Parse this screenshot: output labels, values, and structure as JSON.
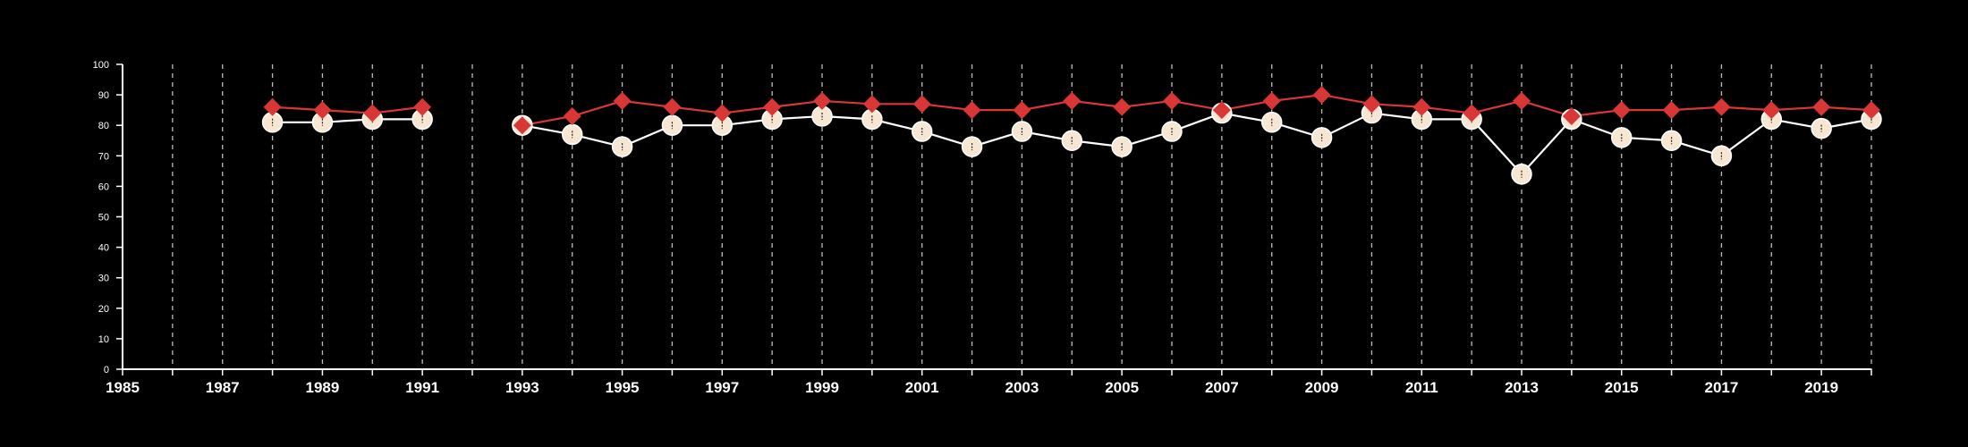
{
  "chart_data": {
    "type": "line",
    "title": "",
    "xlabel": "",
    "ylabel": "",
    "xlim": [
      1985,
      2020
    ],
    "ylim": [
      0,
      100
    ],
    "x_ticks": [
      1985,
      1987,
      1989,
      1991,
      1993,
      1995,
      1997,
      1999,
      2001,
      2003,
      2005,
      2007,
      2009,
      2011,
      2013,
      2015,
      2017,
      2019
    ],
    "x_tick_labels": [
      "1985",
      "1987",
      "1989",
      "1991",
      "1993",
      "1995",
      "1997",
      "1999",
      "2001",
      "2003",
      "2005",
      "2007",
      "2009",
      "2011",
      "2013",
      "2015",
      "2017",
      "2019"
    ],
    "y_ticks": [
      0,
      10,
      20,
      30,
      40,
      50,
      60,
      70,
      80,
      90,
      100
    ],
    "y_tick_labels": [
      "0",
      "10",
      "20",
      "30",
      "40",
      "50",
      "60",
      "70",
      "80",
      "90",
      "100"
    ],
    "grid": "vertical dashed lines at every year",
    "legend": "none",
    "background": "#000000",
    "series": [
      {
        "color": "#d93636",
        "marker": "diamond",
        "points": [
          {
            "x": 1988,
            "y": 86
          },
          {
            "x": 1989,
            "y": 85
          },
          {
            "x": 1990,
            "y": 84
          },
          {
            "x": 1991,
            "y": 86
          },
          {
            "x": 1993,
            "y": 80
          },
          {
            "x": 1994,
            "y": 83
          },
          {
            "x": 1995,
            "y": 88
          },
          {
            "x": 1996,
            "y": 86
          },
          {
            "x": 1997,
            "y": 84
          },
          {
            "x": 1998,
            "y": 86
          },
          {
            "x": 1999,
            "y": 88
          },
          {
            "x": 2000,
            "y": 87
          },
          {
            "x": 2001,
            "y": 87
          },
          {
            "x": 2002,
            "y": 85
          },
          {
            "x": 2003,
            "y": 85
          },
          {
            "x": 2004,
            "y": 88
          },
          {
            "x": 2005,
            "y": 86
          },
          {
            "x": 2006,
            "y": 88
          },
          {
            "x": 2007,
            "y": 85
          },
          {
            "x": 2008,
            "y": 88
          },
          {
            "x": 2009,
            "y": 90
          },
          {
            "x": 2010,
            "y": 87
          },
          {
            "x": 2011,
            "y": 86
          },
          {
            "x": 2012,
            "y": 84
          },
          {
            "x": 2013,
            "y": 88
          },
          {
            "x": 2014,
            "y": 83
          },
          {
            "x": 2015,
            "y": 85
          },
          {
            "x": 2016,
            "y": 85
          },
          {
            "x": 2017,
            "y": 86
          },
          {
            "x": 2018,
            "y": 85
          },
          {
            "x": 2019,
            "y": 86
          },
          {
            "x": 2020,
            "y": 85
          }
        ]
      },
      {
        "color": "#ffffff",
        "marker": "circle",
        "marker_fill": "#f7e6d2",
        "points": [
          {
            "x": 1988,
            "y": 81
          },
          {
            "x": 1989,
            "y": 81
          },
          {
            "x": 1990,
            "y": 82
          },
          {
            "x": 1991,
            "y": 82
          },
          {
            "x": 1993,
            "y": 80
          },
          {
            "x": 1994,
            "y": 77
          },
          {
            "x": 1995,
            "y": 73
          },
          {
            "x": 1996,
            "y": 80
          },
          {
            "x": 1997,
            "y": 80
          },
          {
            "x": 1998,
            "y": 82
          },
          {
            "x": 1999,
            "y": 83
          },
          {
            "x": 2000,
            "y": 82
          },
          {
            "x": 2001,
            "y": 78
          },
          {
            "x": 2002,
            "y": 73
          },
          {
            "x": 2003,
            "y": 78
          },
          {
            "x": 2004,
            "y": 75
          },
          {
            "x": 2005,
            "y": 73
          },
          {
            "x": 2006,
            "y": 78
          },
          {
            "x": 2007,
            "y": 84
          },
          {
            "x": 2008,
            "y": 81
          },
          {
            "x": 2009,
            "y": 76
          },
          {
            "x": 2010,
            "y": 84
          },
          {
            "x": 2011,
            "y": 82
          },
          {
            "x": 2012,
            "y": 82
          },
          {
            "x": 2013,
            "y": 64
          },
          {
            "x": 2014,
            "y": 82
          },
          {
            "x": 2015,
            "y": 76
          },
          {
            "x": 2016,
            "y": 75
          },
          {
            "x": 2017,
            "y": 70
          },
          {
            "x": 2018,
            "y": 82
          },
          {
            "x": 2019,
            "y": 79
          },
          {
            "x": 2020,
            "y": 82
          }
        ]
      }
    ]
  }
}
